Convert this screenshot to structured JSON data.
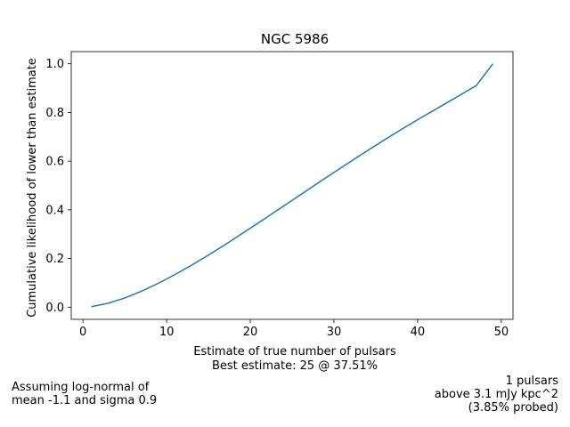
{
  "chart_data": {
    "type": "line",
    "title": "NGC 5986",
    "xlabel": "Estimate of true number of pulsars",
    "xlabel_line2": "Best estimate: 25 @ 37.51%",
    "ylabel": "Cumulative likelihood of lower than estimate",
    "xlim": [
      -1.4,
      51.4
    ],
    "ylim": [
      -0.05,
      1.05
    ],
    "xticks": [
      0,
      10,
      20,
      30,
      40,
      50
    ],
    "yticks": [
      0.0,
      0.2,
      0.4,
      0.6,
      0.8,
      1.0
    ],
    "line_color": "#1f77b4",
    "series": [
      {
        "x": [
          1,
          3,
          5,
          7,
          9,
          11,
          13,
          15,
          17,
          19,
          21,
          23,
          25,
          27,
          29,
          31,
          33,
          35,
          37,
          39,
          41,
          43,
          45,
          47,
          49
        ],
        "y": [
          0.002,
          0.016,
          0.038,
          0.066,
          0.098,
          0.134,
          0.173,
          0.214,
          0.257,
          0.302,
          0.347,
          0.393,
          0.439,
          0.485,
          0.531,
          0.576,
          0.621,
          0.665,
          0.708,
          0.75,
          0.79,
          0.83,
          0.87,
          0.91,
          1.0
        ]
      }
    ]
  },
  "notes": {
    "left_line1": "Assuming log-normal of",
    "left_line2": "mean -1.1 and sigma 0.9",
    "right_line1": "1 pulsars",
    "right_line2": "above 3.1 mJy kpc^2",
    "right_line3": "(3.85% probed)"
  }
}
